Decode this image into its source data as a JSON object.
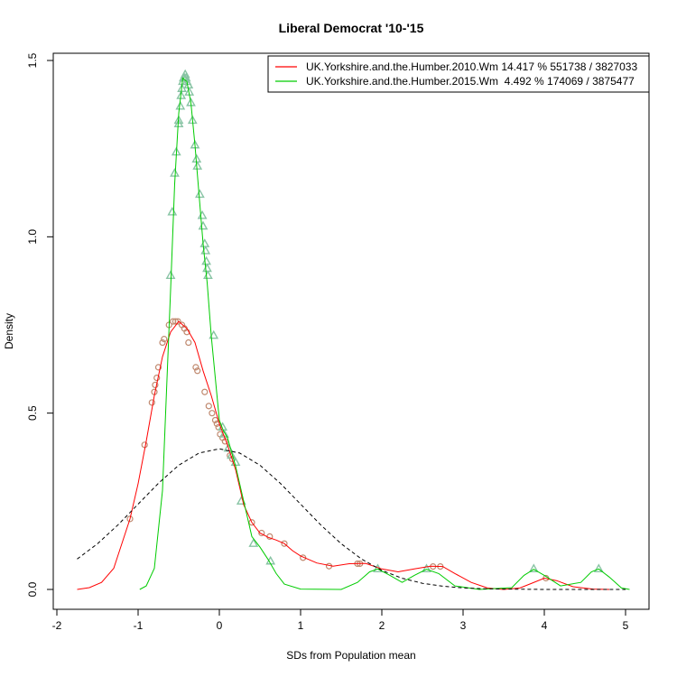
{
  "chart_data": {
    "type": "line",
    "title": "Liberal Democrat '10-'15",
    "xlabel": "SDs from Population mean",
    "ylabel": "Density",
    "xlim": [
      -2,
      5
    ],
    "ylim": [
      0,
      1.5
    ],
    "x_ticks": [
      "-2",
      "-1",
      "0",
      "1",
      "2",
      "3",
      "4",
      "5"
    ],
    "y_ticks": [
      "0.0",
      "0.5",
      "1.0",
      "1.5"
    ],
    "grid": false,
    "legend_position": "top-right",
    "series": [
      {
        "name": "UK.Yorkshire.and.the.Humber.2010.Wm 14.417 % 551738 / 3827033",
        "color": "#ff0000",
        "marker": "circle",
        "curve": [
          [
            -1.75,
            0.0
          ],
          [
            -1.6,
            0.005
          ],
          [
            -1.45,
            0.02
          ],
          [
            -1.3,
            0.06
          ],
          [
            -1.1,
            0.2
          ],
          [
            -1.0,
            0.3
          ],
          [
            -0.9,
            0.42
          ],
          [
            -0.8,
            0.55
          ],
          [
            -0.7,
            0.66
          ],
          [
            -0.6,
            0.73
          ],
          [
            -0.5,
            0.76
          ],
          [
            -0.4,
            0.74
          ],
          [
            -0.3,
            0.7
          ],
          [
            -0.2,
            0.62
          ],
          [
            -0.1,
            0.55
          ],
          [
            0.0,
            0.47
          ],
          [
            0.1,
            0.41
          ],
          [
            0.2,
            0.34
          ],
          [
            0.3,
            0.24
          ],
          [
            0.4,
            0.19
          ],
          [
            0.5,
            0.16
          ],
          [
            0.6,
            0.148
          ],
          [
            0.7,
            0.14
          ],
          [
            0.8,
            0.13
          ],
          [
            0.9,
            0.11
          ],
          [
            1.0,
            0.095
          ],
          [
            1.2,
            0.075
          ],
          [
            1.4,
            0.066
          ],
          [
            1.6,
            0.073
          ],
          [
            1.8,
            0.074
          ],
          [
            2.0,
            0.058
          ],
          [
            2.2,
            0.05
          ],
          [
            2.4,
            0.058
          ],
          [
            2.6,
            0.066
          ],
          [
            2.75,
            0.065
          ],
          [
            2.9,
            0.045
          ],
          [
            3.1,
            0.02
          ],
          [
            3.3,
            0.004
          ],
          [
            3.5,
            0.0
          ],
          [
            3.7,
            0.004
          ],
          [
            3.85,
            0.018
          ],
          [
            4.0,
            0.032
          ],
          [
            4.15,
            0.025
          ],
          [
            4.35,
            0.008
          ],
          [
            4.6,
            0.001
          ],
          [
            4.8,
            0.0
          ]
        ],
        "points": [
          [
            -1.1,
            0.2
          ],
          [
            -0.92,
            0.41
          ],
          [
            -0.83,
            0.53
          ],
          [
            -0.8,
            0.56
          ],
          [
            -0.79,
            0.58
          ],
          [
            -0.77,
            0.6
          ],
          [
            -0.75,
            0.63
          ],
          [
            -0.7,
            0.7
          ],
          [
            -0.68,
            0.71
          ],
          [
            -0.62,
            0.75
          ],
          [
            -0.57,
            0.76
          ],
          [
            -0.54,
            0.76
          ],
          [
            -0.51,
            0.76
          ],
          [
            -0.46,
            0.75
          ],
          [
            -0.43,
            0.74
          ],
          [
            -0.4,
            0.73
          ],
          [
            -0.38,
            0.7
          ],
          [
            -0.29,
            0.63
          ],
          [
            -0.27,
            0.62
          ],
          [
            -0.18,
            0.56
          ],
          [
            -0.13,
            0.52
          ],
          [
            -0.09,
            0.5
          ],
          [
            -0.05,
            0.48
          ],
          [
            -0.03,
            0.47
          ],
          [
            -0.01,
            0.46
          ],
          [
            0.01,
            0.44
          ],
          [
            0.04,
            0.43
          ],
          [
            0.07,
            0.42
          ],
          [
            0.13,
            0.38
          ],
          [
            0.16,
            0.37
          ],
          [
            0.4,
            0.19
          ],
          [
            0.52,
            0.16
          ],
          [
            0.62,
            0.15
          ],
          [
            0.8,
            0.13
          ],
          [
            1.03,
            0.09
          ],
          [
            1.35,
            0.066
          ],
          [
            1.7,
            0.073
          ],
          [
            1.73,
            0.073
          ],
          [
            2.63,
            0.065
          ],
          [
            2.72,
            0.065
          ],
          [
            4.02,
            0.032
          ]
        ]
      },
      {
        "name": "UK.Yorkshire.and.the.Humber.2015.Wm  4.492 % 174069 / 3875477",
        "color": "#00cc00",
        "marker": "triangle",
        "curve": [
          [
            -0.98,
            0.0
          ],
          [
            -0.9,
            0.01
          ],
          [
            -0.8,
            0.06
          ],
          [
            -0.7,
            0.28
          ],
          [
            -0.6,
            0.85
          ],
          [
            -0.55,
            1.15
          ],
          [
            -0.5,
            1.35
          ],
          [
            -0.45,
            1.45
          ],
          [
            -0.4,
            1.44
          ],
          [
            -0.35,
            1.38
          ],
          [
            -0.3,
            1.26
          ],
          [
            -0.25,
            1.12
          ],
          [
            -0.2,
            0.98
          ],
          [
            -0.15,
            0.87
          ],
          [
            -0.1,
            0.72
          ],
          [
            -0.05,
            0.6
          ],
          [
            0.0,
            0.48
          ],
          [
            0.05,
            0.45
          ],
          [
            0.1,
            0.43
          ],
          [
            0.15,
            0.39
          ],
          [
            0.2,
            0.35
          ],
          [
            0.3,
            0.25
          ],
          [
            0.4,
            0.15
          ],
          [
            0.5,
            0.12
          ],
          [
            0.6,
            0.085
          ],
          [
            0.7,
            0.045
          ],
          [
            0.8,
            0.015
          ],
          [
            1.0,
            0.001
          ],
          [
            1.5,
            0.0
          ],
          [
            1.7,
            0.02
          ],
          [
            1.85,
            0.05
          ],
          [
            1.95,
            0.058
          ],
          [
            2.1,
            0.04
          ],
          [
            2.25,
            0.02
          ],
          [
            2.4,
            0.04
          ],
          [
            2.55,
            0.057
          ],
          [
            2.7,
            0.045
          ],
          [
            2.9,
            0.01
          ],
          [
            3.2,
            0.0
          ],
          [
            3.6,
            0.005
          ],
          [
            3.75,
            0.04
          ],
          [
            3.87,
            0.057
          ],
          [
            4.0,
            0.04
          ],
          [
            4.2,
            0.01
          ],
          [
            4.45,
            0.02
          ],
          [
            4.58,
            0.05
          ],
          [
            4.67,
            0.058
          ],
          [
            4.8,
            0.035
          ],
          [
            4.95,
            0.004
          ],
          [
            5.05,
            0.0
          ]
        ],
        "points": [
          [
            -0.6,
            0.89
          ],
          [
            -0.58,
            1.07
          ],
          [
            -0.55,
            1.18
          ],
          [
            -0.53,
            1.24
          ],
          [
            -0.5,
            1.32
          ],
          [
            -0.5,
            1.33
          ],
          [
            -0.48,
            1.37
          ],
          [
            -0.47,
            1.4
          ],
          [
            -0.46,
            1.42
          ],
          [
            -0.45,
            1.44
          ],
          [
            -0.44,
            1.45
          ],
          [
            -0.43,
            1.45
          ],
          [
            -0.42,
            1.46
          ],
          [
            -0.41,
            1.45
          ],
          [
            -0.4,
            1.44
          ],
          [
            -0.38,
            1.43
          ],
          [
            -0.37,
            1.41
          ],
          [
            -0.35,
            1.38
          ],
          [
            -0.33,
            1.33
          ],
          [
            -0.3,
            1.26
          ],
          [
            -0.28,
            1.22
          ],
          [
            -0.27,
            1.2
          ],
          [
            -0.24,
            1.12
          ],
          [
            -0.21,
            1.06
          ],
          [
            -0.2,
            1.03
          ],
          [
            -0.18,
            0.98
          ],
          [
            -0.17,
            0.96
          ],
          [
            -0.16,
            0.93
          ],
          [
            -0.15,
            0.91
          ],
          [
            -0.14,
            0.89
          ],
          [
            -0.07,
            0.72
          ],
          [
            0.04,
            0.46
          ],
          [
            0.06,
            0.44
          ],
          [
            0.11,
            0.4
          ],
          [
            0.15,
            0.38
          ],
          [
            0.2,
            0.36
          ],
          [
            0.27,
            0.25
          ],
          [
            0.42,
            0.13
          ],
          [
            0.63,
            0.08
          ],
          [
            1.95,
            0.058
          ],
          [
            2.55,
            0.058
          ],
          [
            3.87,
            0.058
          ],
          [
            4.67,
            0.058
          ]
        ]
      },
      {
        "name": "",
        "color": "#000000",
        "style": "dashed",
        "curve": [
          [
            -1.75,
            0.0863
          ],
          [
            -1.5,
            0.1295
          ],
          [
            -1.25,
            0.1826
          ],
          [
            -1.0,
            0.242
          ],
          [
            -0.75,
            0.3011
          ],
          [
            -0.5,
            0.3521
          ],
          [
            -0.25,
            0.3867
          ],
          [
            0.0,
            0.3989
          ],
          [
            0.25,
            0.3867
          ],
          [
            0.5,
            0.3521
          ],
          [
            0.75,
            0.3011
          ],
          [
            1.0,
            0.242
          ],
          [
            1.25,
            0.1826
          ],
          [
            1.5,
            0.1295
          ],
          [
            1.75,
            0.0863
          ],
          [
            2.0,
            0.054
          ],
          [
            2.25,
            0.0317
          ],
          [
            2.5,
            0.0175
          ],
          [
            2.75,
            0.0091
          ],
          [
            3.0,
            0.0044
          ],
          [
            3.25,
            0.002
          ],
          [
            3.5,
            0.0009
          ],
          [
            3.75,
            0.0004
          ],
          [
            4.0,
            0.0001
          ],
          [
            4.5,
            0.0
          ],
          [
            5.0,
            0.0
          ]
        ]
      }
    ]
  }
}
